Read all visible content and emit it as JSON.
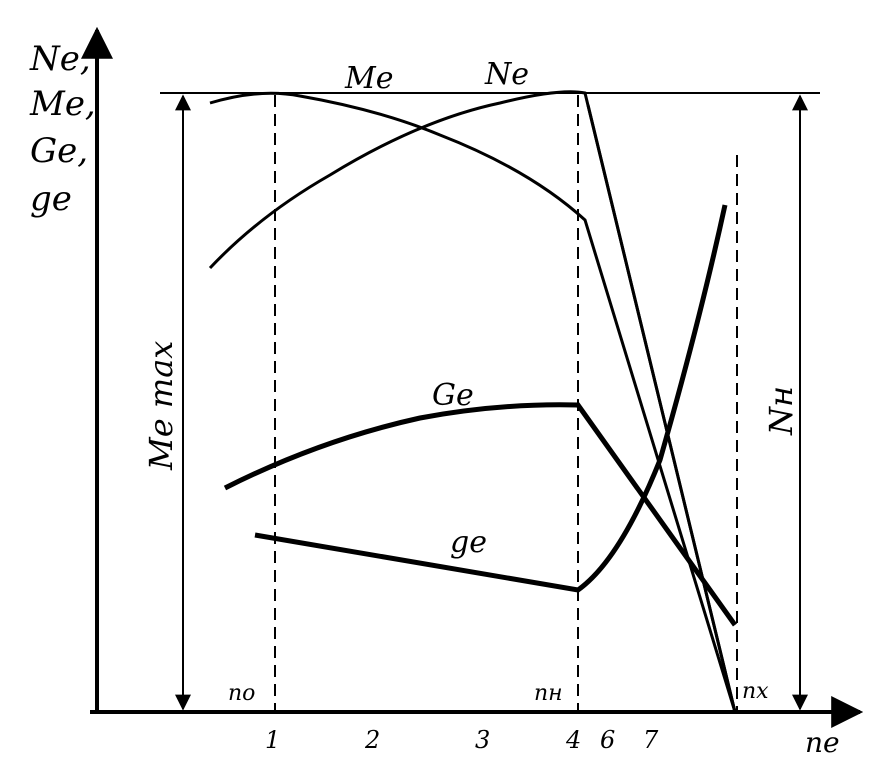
{
  "axis": {
    "y_label_lines": [
      "Ne,",
      "Me,",
      "Ge,",
      "ge"
    ],
    "x_label": "ne"
  },
  "curves": [
    {
      "label": "Me"
    },
    {
      "label": "Ne"
    },
    {
      "label": "Ge"
    },
    {
      "label": "ge"
    }
  ],
  "dimensions": [
    {
      "label": "Me max"
    },
    {
      "label": "Nн"
    }
  ],
  "speeds": [
    "nо",
    "nн",
    "nх"
  ],
  "points": [
    "1",
    "2",
    "3",
    "4",
    "6",
    "7"
  ]
}
